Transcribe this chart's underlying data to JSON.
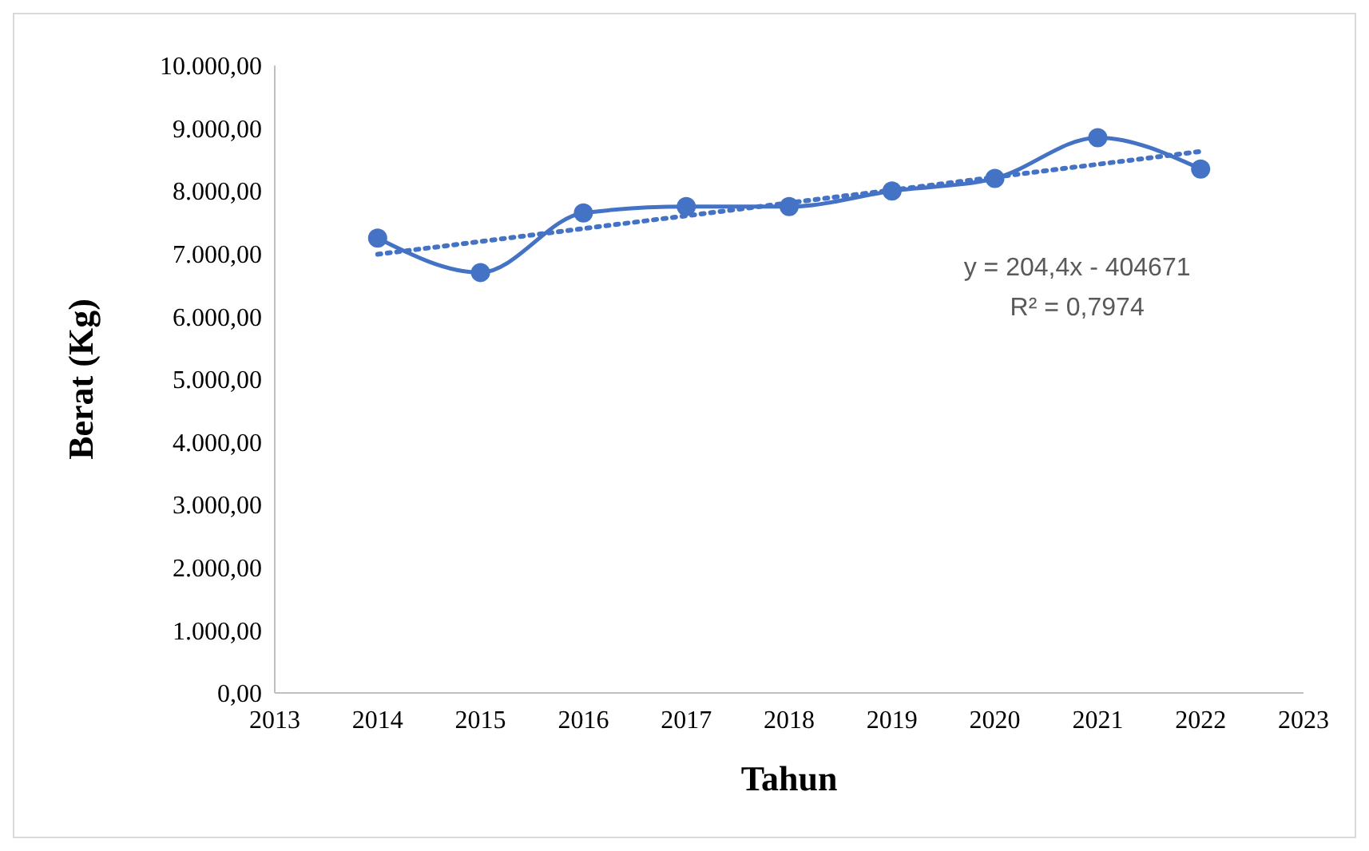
{
  "chart_data": {
    "type": "line",
    "xlabel": "Tahun",
    "ylabel": "Berat (Kg)",
    "x": [
      2014,
      2015,
      2016,
      2017,
      2018,
      2019,
      2020,
      2021,
      2022
    ],
    "series": [
      {
        "color": "#4472c4",
        "values": [
          7250,
          6700,
          7650,
          7750,
          7750,
          8000,
          8200,
          8850,
          8350
        ],
        "marker": "circle",
        "line_style": "solid"
      },
      {
        "type": "line",
        "color": "#4472c4",
        "x": [
          2014,
          2022
        ],
        "values": [
          6990,
          8630
        ],
        "marker": "none",
        "line_style": "dotted"
      }
    ],
    "xlim": [
      2013,
      2023
    ],
    "xticks": [
      2013,
      2014,
      2015,
      2016,
      2017,
      2018,
      2019,
      2020,
      2021,
      2022,
      2023
    ],
    "ylim": [
      0,
      10000
    ],
    "yticks": [
      {
        "value": 0,
        "label": "0,00"
      },
      {
        "value": 1000,
        "label": "1.000,00"
      },
      {
        "value": 2000,
        "label": "2.000,00"
      },
      {
        "value": 3000,
        "label": "3.000,00"
      },
      {
        "value": 4000,
        "label": "4.000,00"
      },
      {
        "value": 5000,
        "label": "5.000,00"
      },
      {
        "value": 6000,
        "label": "6.000,00"
      },
      {
        "value": 7000,
        "label": "7.000,00"
      },
      {
        "value": 8000,
        "label": "8.000,00"
      },
      {
        "value": 9000,
        "label": "9.000,00"
      },
      {
        "value": 10000,
        "label": "10.000,00"
      }
    ],
    "annotations": [
      "y = 204,4x - 404671",
      "R² = 0,7974"
    ],
    "grid": false
  }
}
